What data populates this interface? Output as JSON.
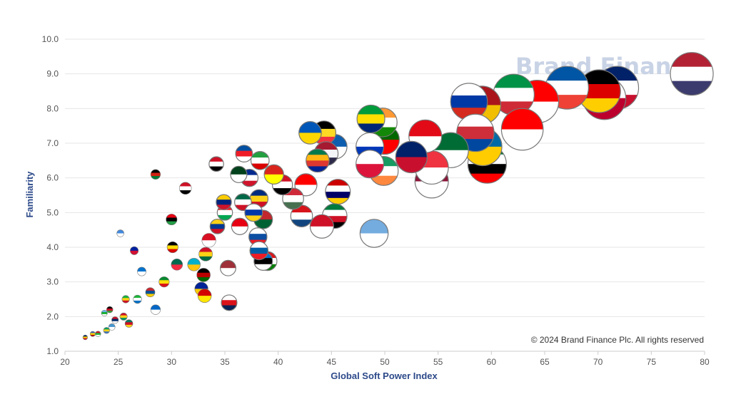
{
  "watermark": "Brand Finance",
  "copyright": "© 2024 Brand Finance Plc. All rights reserved",
  "chart_data": {
    "type": "scatter",
    "title": "",
    "xlabel": "Global Soft Power Index",
    "ylabel": "Familiarity",
    "xlim": [
      20,
      80
    ],
    "ylim": [
      1.0,
      10.0
    ],
    "x_ticks": [
      "20",
      "25",
      "30",
      "35",
      "40",
      "45",
      "50",
      "55",
      "60",
      "65",
      "70",
      "75",
      "80"
    ],
    "y_ticks": [
      "1.0",
      "2.0",
      "3.0",
      "4.0",
      "5.0",
      "6.0",
      "7.0",
      "8.0",
      "9.0",
      "10.0"
    ],
    "grid": true,
    "legend": "none",
    "colors": {
      "axis_title": "#2d4a8a",
      "grid": "#e6e6e6",
      "watermark": "#c9d3e6",
      "marker_outline": "#777777"
    },
    "points": [
      {
        "x": 78.8,
        "y": 9.0,
        "flag": "united-states",
        "colors": [
          "#b22234",
          "#ffffff",
          "#3c3b6e"
        ]
      },
      {
        "x": 71.8,
        "y": 8.6,
        "flag": "united-kingdom",
        "colors": [
          "#012169",
          "#ffffff",
          "#c8102e"
        ]
      },
      {
        "x": 70.6,
        "y": 8.3,
        "flag": "japan",
        "colors": [
          "#ffffff",
          "#bc002d"
        ]
      },
      {
        "x": 70.1,
        "y": 8.5,
        "flag": "germany",
        "colors": [
          "#000000",
          "#dd0000",
          "#ffce00"
        ]
      },
      {
        "x": 67.1,
        "y": 8.6,
        "flag": "france",
        "colors": [
          "#0055a4",
          "#ffffff",
          "#ef4135"
        ]
      },
      {
        "x": 64.3,
        "y": 8.2,
        "flag": "canada",
        "colors": [
          "#ff0000",
          "#ffffff"
        ]
      },
      {
        "x": 62.1,
        "y": 8.4,
        "flag": "italy",
        "colors": [
          "#009246",
          "#ffffff",
          "#ce2b37"
        ]
      },
      {
        "x": 62.9,
        "y": 7.4,
        "flag": "switzerland",
        "colors": [
          "#ff0000",
          "#ffffff"
        ]
      },
      {
        "x": 59.6,
        "y": 6.4,
        "flag": "united-arab-emirates",
        "colors": [
          "#00732f",
          "#ffffff",
          "#000000",
          "#ff0000"
        ]
      },
      {
        "x": 59.2,
        "y": 6.9,
        "flag": "sweden",
        "colors": [
          "#006aa7",
          "#fecc00"
        ]
      },
      {
        "x": 59.1,
        "y": 8.1,
        "flag": "spain",
        "colors": [
          "#aa151b",
          "#f1bf00"
        ]
      },
      {
        "x": 57.9,
        "y": 8.2,
        "flag": "russia",
        "colors": [
          "#ffffff",
          "#0039a6",
          "#d52b1e"
        ]
      },
      {
        "x": 58.5,
        "y": 7.3,
        "flag": "south-korea",
        "colors": [
          "#ffffff",
          "#cd2e3a",
          "#0047a0"
        ]
      },
      {
        "x": 56.2,
        "y": 6.8,
        "flag": "saudi-arabia",
        "colors": [
          "#006c35",
          "#ffffff"
        ]
      },
      {
        "x": 54.4,
        "y": 5.9,
        "flag": "qatar",
        "colors": [
          "#8a1538",
          "#ffffff"
        ]
      },
      {
        "x": 54.4,
        "y": 6.3,
        "flag": "singapore",
        "colors": [
          "#ef3340",
          "#ffffff"
        ]
      },
      {
        "x": 53.8,
        "y": 7.2,
        "flag": "turkey",
        "colors": [
          "#e30a17",
          "#ffffff"
        ]
      },
      {
        "x": 52.5,
        "y": 6.6,
        "flag": "new-zealand",
        "colors": [
          "#012169",
          "#c8102e"
        ]
      },
      {
        "x": 49.9,
        "y": 6.2,
        "flag": "ireland",
        "colors": [
          "#169b62",
          "#ffffff",
          "#ff883e"
        ]
      },
      {
        "x": 50.0,
        "y": 7.1,
        "flag": "portugal",
        "colors": [
          "#006600",
          "#ff0000"
        ]
      },
      {
        "x": 49.8,
        "y": 7.6,
        "flag": "india",
        "colors": [
          "#ff9933",
          "#ffffff",
          "#138808"
        ]
      },
      {
        "x": 48.7,
        "y": 7.7,
        "flag": "brazil",
        "colors": [
          "#009c3b",
          "#ffdf00",
          "#002776"
        ]
      },
      {
        "x": 48.6,
        "y": 6.9,
        "flag": "israel",
        "colors": [
          "#ffffff",
          "#0038b8"
        ]
      },
      {
        "x": 48.6,
        "y": 6.4,
        "flag": "poland",
        "colors": [
          "#ffffff",
          "#dc143c"
        ]
      },
      {
        "x": 49.0,
        "y": 4.4,
        "flag": "argentina",
        "colors": [
          "#74acdf",
          "#ffffff"
        ]
      },
      {
        "x": 45.6,
        "y": 5.6,
        "flag": "malaysia",
        "colors": [
          "#cc0001",
          "#ffffff",
          "#010066",
          "#ffcc00"
        ]
      },
      {
        "x": 45.3,
        "y": 6.9,
        "flag": "greece",
        "colors": [
          "#0d5eaf",
          "#ffffff"
        ]
      },
      {
        "x": 44.3,
        "y": 7.3,
        "flag": "belgium",
        "colors": [
          "#000000",
          "#fdda24",
          "#ef3340"
        ]
      },
      {
        "x": 44.5,
        "y": 6.7,
        "flag": "thailand",
        "colors": [
          "#a51931",
          "#f4f5f8",
          "#2d2a4a"
        ]
      },
      {
        "x": 43.7,
        "y": 6.5,
        "flag": "south-africa",
        "colors": [
          "#007a4d",
          "#ffb612",
          "#de3831",
          "#002395"
        ]
      },
      {
        "x": 43.0,
        "y": 7.3,
        "flag": "ukraine",
        "colors": [
          "#0057b7",
          "#ffd700"
        ]
      },
      {
        "x": 45.3,
        "y": 4.9,
        "flag": "kuwait",
        "colors": [
          "#007a3d",
          "#ffffff",
          "#ce1126",
          "#000000"
        ]
      },
      {
        "x": 44.1,
        "y": 4.6,
        "flag": "monaco",
        "colors": [
          "#ce1126",
          "#ffffff"
        ]
      },
      {
        "x": 42.6,
        "y": 5.8,
        "flag": "indonesia",
        "colors": [
          "#ff0000",
          "#ffffff"
        ]
      },
      {
        "x": 42.2,
        "y": 4.9,
        "flag": "czech-republic",
        "colors": [
          "#d7141a",
          "#ffffff",
          "#11457e"
        ]
      },
      {
        "x": 41.4,
        "y": 5.4,
        "flag": "hungary",
        "colors": [
          "#ce2939",
          "#ffffff",
          "#477050"
        ]
      },
      {
        "x": 40.4,
        "y": 5.8,
        "flag": "egypt",
        "colors": [
          "#ce1126",
          "#ffffff",
          "#000000"
        ]
      },
      {
        "x": 39.6,
        "y": 6.1,
        "flag": "vietnam",
        "colors": [
          "#da251d",
          "#ffff00"
        ]
      },
      {
        "x": 38.3,
        "y": 6.5,
        "flag": "iran",
        "colors": [
          "#239f40",
          "#ffffff",
          "#da0000"
        ]
      },
      {
        "x": 38.2,
        "y": 5.4,
        "flag": "romania",
        "colors": [
          "#002b7f",
          "#fcd116",
          "#ce1126"
        ]
      },
      {
        "x": 37.3,
        "y": 6.0,
        "flag": "cuba",
        "colors": [
          "#002a8f",
          "#ffffff",
          "#cf142b"
        ]
      },
      {
        "x": 36.8,
        "y": 6.7,
        "flag": "north-korea",
        "colors": [
          "#024fa2",
          "#ed1c27",
          "#ffffff"
        ]
      },
      {
        "x": 34.2,
        "y": 6.4,
        "flag": "iraq",
        "colors": [
          "#ce1126",
          "#ffffff",
          "#000000"
        ]
      },
      {
        "x": 36.3,
        "y": 6.1,
        "flag": "pakistan",
        "colors": [
          "#01411c",
          "#ffffff"
        ]
      },
      {
        "x": 36.7,
        "y": 5.3,
        "flag": "mexico",
        "colors": [
          "#006847",
          "#ffffff",
          "#ce1126"
        ]
      },
      {
        "x": 38.6,
        "y": 4.8,
        "flag": "morocco",
        "colors": [
          "#c1272d",
          "#006233"
        ]
      },
      {
        "x": 38.1,
        "y": 4.3,
        "flag": "slovakia",
        "colors": [
          "#ffffff",
          "#0b4ea2",
          "#ee1c25"
        ]
      },
      {
        "x": 37.7,
        "y": 5.0,
        "flag": "uruguay",
        "colors": [
          "#ffffff",
          "#0038a8",
          "#fcd116"
        ]
      },
      {
        "x": 36.4,
        "y": 4.6,
        "flag": "tunisia",
        "colors": [
          "#e70013",
          "#ffffff"
        ]
      },
      {
        "x": 39.0,
        "y": 3.6,
        "flag": "oman",
        "colors": [
          "#db161b",
          "#ffffff",
          "#008000"
        ]
      },
      {
        "x": 38.6,
        "y": 3.6,
        "flag": "estonia",
        "colors": [
          "#0072ce",
          "#000000",
          "#ffffff"
        ]
      },
      {
        "x": 38.2,
        "y": 3.9,
        "flag": "slovenia",
        "colors": [
          "#ffffff",
          "#005da4",
          "#ed1c24"
        ]
      },
      {
        "x": 35.3,
        "y": 3.4,
        "flag": "latvia",
        "colors": [
          "#9e3039",
          "#ffffff"
        ]
      },
      {
        "x": 35.0,
        "y": 5.0,
        "flag": "lebanon",
        "colors": [
          "#ed1c24",
          "#ffffff",
          "#00a651"
        ]
      },
      {
        "x": 34.9,
        "y": 5.3,
        "flag": "venezuela",
        "colors": [
          "#ffcc00",
          "#00247d",
          "#cf142b"
        ]
      },
      {
        "x": 34.3,
        "y": 4.6,
        "flag": "colombia",
        "colors": [
          "#fcd116",
          "#003893",
          "#ce1126"
        ]
      },
      {
        "x": 33.5,
        "y": 4.2,
        "flag": "peru",
        "colors": [
          "#d91023",
          "#ffffff"
        ]
      },
      {
        "x": 33.2,
        "y": 3.8,
        "flag": "ghana",
        "colors": [
          "#ce1126",
          "#fcd116",
          "#006b3f"
        ]
      },
      {
        "x": 33.0,
        "y": 3.2,
        "flag": "kenya",
        "colors": [
          "#000000",
          "#bb0000",
          "#006600"
        ]
      },
      {
        "x": 32.8,
        "y": 2.8,
        "flag": "bosnia",
        "colors": [
          "#002395",
          "#fecb00"
        ]
      },
      {
        "x": 32.1,
        "y": 3.5,
        "flag": "kazakhstan",
        "colors": [
          "#00afca",
          "#fec50c"
        ]
      },
      {
        "x": 33.1,
        "y": 2.6,
        "flag": "north-macedonia",
        "colors": [
          "#d20000",
          "#ffe600"
        ]
      },
      {
        "x": 35.4,
        "y": 2.4,
        "flag": "panama",
        "colors": [
          "#ffffff",
          "#da121a",
          "#072357"
        ]
      },
      {
        "x": 31.3,
        "y": 5.7,
        "flag": "syria",
        "colors": [
          "#ce1126",
          "#ffffff",
          "#000000"
        ]
      },
      {
        "x": 30.0,
        "y": 4.8,
        "flag": "libya",
        "colors": [
          "#e70013",
          "#000000",
          "#239e46"
        ]
      },
      {
        "x": 28.5,
        "y": 6.1,
        "flag": "afghanistan",
        "colors": [
          "#000000",
          "#d32011",
          "#007a36"
        ]
      },
      {
        "x": 30.1,
        "y": 4.0,
        "flag": "uganda",
        "colors": [
          "#000000",
          "#fcdc04",
          "#d90000"
        ]
      },
      {
        "x": 30.5,
        "y": 3.5,
        "flag": "bangladesh",
        "colors": [
          "#006a4e",
          "#f42a41"
        ]
      },
      {
        "x": 29.3,
        "y": 3.0,
        "flag": "ethiopia",
        "colors": [
          "#078930",
          "#fcdd09",
          "#da121a"
        ]
      },
      {
        "x": 28.5,
        "y": 2.2,
        "flag": "nicaragua",
        "colors": [
          "#0067c6",
          "#ffffff"
        ]
      },
      {
        "x": 27.2,
        "y": 3.3,
        "flag": "honduras",
        "colors": [
          "#0073cf",
          "#ffffff"
        ]
      },
      {
        "x": 26.5,
        "y": 3.9,
        "flag": "haiti",
        "colors": [
          "#00209f",
          "#d21034"
        ]
      },
      {
        "x": 25.2,
        "y": 4.4,
        "flag": "somalia",
        "colors": [
          "#4189dd",
          "#ffffff"
        ]
      },
      {
        "x": 28.0,
        "y": 2.7,
        "flag": "mongolia",
        "colors": [
          "#c4272f",
          "#015197",
          "#f9cf02"
        ]
      },
      {
        "x": 26.8,
        "y": 2.5,
        "flag": "sierra-leone",
        "colors": [
          "#1eb53a",
          "#ffffff",
          "#0072c6"
        ]
      },
      {
        "x": 26.0,
        "y": 1.8,
        "flag": "cameroon",
        "colors": [
          "#007a5e",
          "#ce1126",
          "#fcd116"
        ]
      },
      {
        "x": 25.7,
        "y": 2.5,
        "flag": "mali",
        "colors": [
          "#14b53a",
          "#fcd116",
          "#ce1126"
        ]
      },
      {
        "x": 25.5,
        "y": 2.0,
        "flag": "guinea",
        "colors": [
          "#ce1126",
          "#fcd116",
          "#009460"
        ]
      },
      {
        "x": 24.7,
        "y": 1.9,
        "flag": "laos",
        "colors": [
          "#ce1126",
          "#002868",
          "#ffffff"
        ]
      },
      {
        "x": 24.2,
        "y": 2.2,
        "flag": "malawi",
        "colors": [
          "#000000",
          "#ce1126",
          "#339e35"
        ]
      },
      {
        "x": 23.7,
        "y": 2.1,
        "flag": "djibouti",
        "colors": [
          "#6ab2e7",
          "#12ad2b",
          "#ffffff"
        ]
      },
      {
        "x": 24.4,
        "y": 1.7,
        "flag": "guatemala",
        "colors": [
          "#4997d0",
          "#ffffff"
        ]
      },
      {
        "x": 23.9,
        "y": 1.6,
        "flag": "gabon",
        "colors": [
          "#009e60",
          "#fcd116",
          "#3a75c4"
        ]
      },
      {
        "x": 23.1,
        "y": 1.5,
        "flag": "burundi",
        "colors": [
          "#ce1126",
          "#1eb53a",
          "#ffffff"
        ]
      },
      {
        "x": 22.6,
        "y": 1.5,
        "flag": "eswatini",
        "colors": [
          "#3e5eb9",
          "#ffd900",
          "#b10c0c"
        ]
      },
      {
        "x": 21.9,
        "y": 1.4,
        "flag": "chad",
        "colors": [
          "#002664",
          "#fecb00",
          "#c60c30"
        ]
      }
    ]
  }
}
